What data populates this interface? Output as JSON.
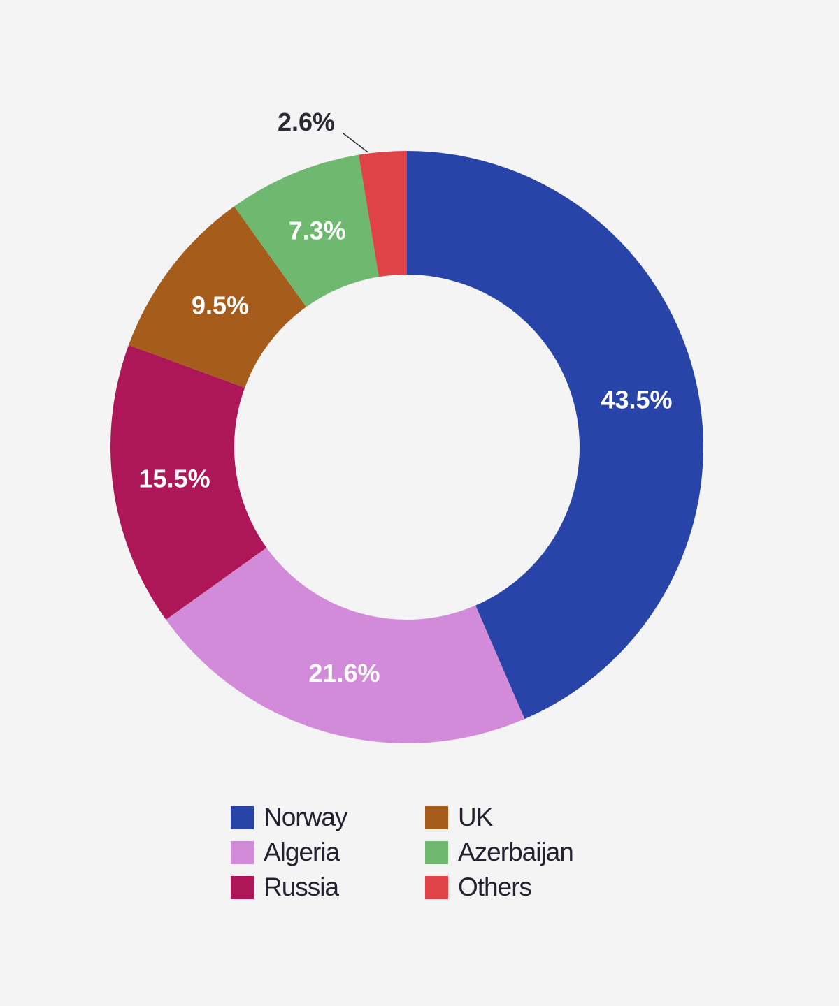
{
  "chart_data": {
    "type": "pie",
    "style": "donut",
    "title": "",
    "slices": [
      {
        "name": "Norway",
        "value": 43.5,
        "label": "43.5%",
        "color": "#2944a8"
      },
      {
        "name": "Algeria",
        "value": 21.6,
        "label": "21.6%",
        "color": "#d28bd8"
      },
      {
        "name": "Russia",
        "value": 15.5,
        "label": "15.5%",
        "color": "#ad1758"
      },
      {
        "name": "UK",
        "value": 9.5,
        "label": "9.5%",
        "color": "#a65d1b"
      },
      {
        "name": "Azerbaijan",
        "value": 7.3,
        "label": "7.3%",
        "color": "#6fb86f"
      },
      {
        "name": "Others",
        "value": 2.6,
        "label": "2.6%",
        "color": "#e04347"
      }
    ],
    "legend_position": "bottom",
    "start_angle": "top (12 o'clock), clockwise"
  },
  "legend": {
    "items": [
      {
        "label": "Norway",
        "color": "#2944a8"
      },
      {
        "label": "UK",
        "color": "#a65d1b"
      },
      {
        "label": "Algeria",
        "color": "#d28bd8"
      },
      {
        "label": "Azerbaijan",
        "color": "#6fb86f"
      },
      {
        "label": "Russia",
        "color": "#ad1758"
      },
      {
        "label": "Others",
        "color": "#e04347"
      }
    ]
  }
}
